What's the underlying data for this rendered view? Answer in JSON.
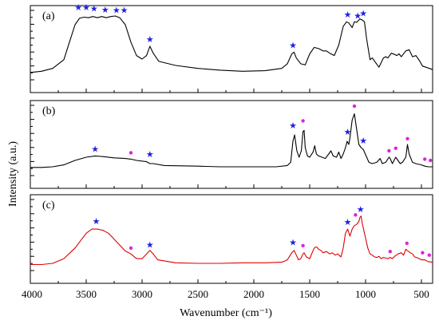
{
  "chart_data": {
    "type": "line",
    "xlabel": "Wavenumber (cm⁻¹)",
    "ylabel": "Intensity (a.u.)",
    "xlim": [
      4000,
      400
    ],
    "x_reversed": true,
    "x_ticks": [
      4000,
      3500,
      3000,
      2500,
      2000,
      1500,
      1000,
      500
    ],
    "grid": false,
    "marker_colors": {
      "star": "#2020e0",
      "dot": "#e020e0"
    },
    "panels": [
      {
        "label": "(a)",
        "color": "#000000",
        "y_axis_ticks": false,
        "points": [
          [
            4000,
            0.03
          ],
          [
            3900,
            0.05
          ],
          [
            3800,
            0.1
          ],
          [
            3700,
            0.25
          ],
          [
            3650,
            0.55
          ],
          [
            3600,
            0.85
          ],
          [
            3560,
            0.96
          ],
          [
            3520,
            0.98
          ],
          [
            3480,
            0.97
          ],
          [
            3440,
            0.99
          ],
          [
            3400,
            0.97
          ],
          [
            3360,
            0.99
          ],
          [
            3320,
            0.97
          ],
          [
            3280,
            0.99
          ],
          [
            3240,
            1.0
          ],
          [
            3200,
            0.97
          ],
          [
            3150,
            0.85
          ],
          [
            3100,
            0.55
          ],
          [
            3050,
            0.32
          ],
          [
            3000,
            0.26
          ],
          [
            2960,
            0.32
          ],
          [
            2930,
            0.48
          ],
          [
            2900,
            0.36
          ],
          [
            2850,
            0.22
          ],
          [
            2700,
            0.15
          ],
          [
            2500,
            0.1
          ],
          [
            2300,
            0.07
          ],
          [
            2100,
            0.05
          ],
          [
            1900,
            0.06
          ],
          [
            1750,
            0.1
          ],
          [
            1700,
            0.18
          ],
          [
            1660,
            0.35
          ],
          [
            1640,
            0.38
          ],
          [
            1620,
            0.28
          ],
          [
            1580,
            0.18
          ],
          [
            1540,
            0.16
          ],
          [
            1500,
            0.35
          ],
          [
            1460,
            0.46
          ],
          [
            1420,
            0.44
          ],
          [
            1380,
            0.4
          ],
          [
            1350,
            0.4
          ],
          [
            1320,
            0.36
          ],
          [
            1280,
            0.32
          ],
          [
            1240,
            0.5
          ],
          [
            1200,
            0.82
          ],
          [
            1170,
            0.9
          ],
          [
            1150,
            0.88
          ],
          [
            1120,
            0.8
          ],
          [
            1100,
            0.9
          ],
          [
            1080,
            0.89
          ],
          [
            1050,
            0.95
          ],
          [
            1030,
            0.93
          ],
          [
            1010,
            0.9
          ],
          [
            990,
            0.6
          ],
          [
            960,
            0.25
          ],
          [
            940,
            0.28
          ],
          [
            910,
            0.2
          ],
          [
            880,
            0.12
          ],
          [
            860,
            0.2
          ],
          [
            840,
            0.28
          ],
          [
            820,
            0.3
          ],
          [
            800,
            0.28
          ],
          [
            770,
            0.36
          ],
          [
            740,
            0.34
          ],
          [
            720,
            0.32
          ],
          [
            700,
            0.35
          ],
          [
            680,
            0.3
          ],
          [
            640,
            0.4
          ],
          [
            610,
            0.42
          ],
          [
            580,
            0.3
          ],
          [
            550,
            0.32
          ],
          [
            520,
            0.24
          ],
          [
            490,
            0.14
          ],
          [
            460,
            0.12
          ],
          [
            430,
            0.1
          ],
          [
            400,
            0.08
          ]
        ],
        "markers": [
          {
            "type": "star",
            "x": 3570,
            "y": 1.15
          },
          {
            "type": "star",
            "x": 3500,
            "y": 1.15
          },
          {
            "type": "star",
            "x": 3430,
            "y": 1.13
          },
          {
            "type": "star",
            "x": 3330,
            "y": 1.11
          },
          {
            "type": "star",
            "x": 3230,
            "y": 1.1
          },
          {
            "type": "star",
            "x": 3160,
            "y": 1.1
          },
          {
            "type": "star",
            "x": 2930,
            "y": 0.6
          },
          {
            "type": "star",
            "x": 1650,
            "y": 0.5
          },
          {
            "type": "star",
            "x": 1160,
            "y": 1.03
          },
          {
            "type": "star",
            "x": 1070,
            "y": 1.01
          },
          {
            "type": "star",
            "x": 1020,
            "y": 1.05
          }
        ]
      },
      {
        "label": "(b)",
        "color": "#000000",
        "y_axis_ticks": true,
        "points": [
          [
            4000,
            0.04
          ],
          [
            3900,
            0.04
          ],
          [
            3800,
            0.05
          ],
          [
            3700,
            0.08
          ],
          [
            3600,
            0.15
          ],
          [
            3500,
            0.2
          ],
          [
            3420,
            0.22
          ],
          [
            3350,
            0.21
          ],
          [
            3250,
            0.19
          ],
          [
            3150,
            0.18
          ],
          [
            3100,
            0.17
          ],
          [
            3050,
            0.15
          ],
          [
            2960,
            0.13
          ],
          [
            2930,
            0.1
          ],
          [
            2900,
            0.1
          ],
          [
            2800,
            0.07
          ],
          [
            2500,
            0.06
          ],
          [
            2300,
            0.05
          ],
          [
            2000,
            0.05
          ],
          [
            1800,
            0.05
          ],
          [
            1700,
            0.07
          ],
          [
            1670,
            0.12
          ],
          [
            1650,
            0.45
          ],
          [
            1635,
            0.55
          ],
          [
            1615,
            0.3
          ],
          [
            1595,
            0.2
          ],
          [
            1575,
            0.3
          ],
          [
            1560,
            0.6
          ],
          [
            1550,
            0.62
          ],
          [
            1540,
            0.35
          ],
          [
            1520,
            0.22
          ],
          [
            1500,
            0.2
          ],
          [
            1470,
            0.28
          ],
          [
            1455,
            0.38
          ],
          [
            1440,
            0.25
          ],
          [
            1420,
            0.22
          ],
          [
            1390,
            0.2
          ],
          [
            1360,
            0.18
          ],
          [
            1330,
            0.25
          ],
          [
            1310,
            0.3
          ],
          [
            1290,
            0.22
          ],
          [
            1260,
            0.2
          ],
          [
            1240,
            0.28
          ],
          [
            1220,
            0.18
          ],
          [
            1200,
            0.25
          ],
          [
            1180,
            0.35
          ],
          [
            1165,
            0.45
          ],
          [
            1150,
            0.4
          ],
          [
            1140,
            0.5
          ],
          [
            1120,
            0.78
          ],
          [
            1100,
            0.88
          ],
          [
            1085,
            0.7
          ],
          [
            1060,
            0.4
          ],
          [
            1040,
            0.35
          ],
          [
            1020,
            0.32
          ],
          [
            990,
            0.2
          ],
          [
            970,
            0.12
          ],
          [
            940,
            0.1
          ],
          [
            900,
            0.12
          ],
          [
            870,
            0.18
          ],
          [
            850,
            0.1
          ],
          [
            820,
            0.12
          ],
          [
            790,
            0.2
          ],
          [
            780,
            0.18
          ],
          [
            760,
            0.1
          ],
          [
            730,
            0.2
          ],
          [
            710,
            0.15
          ],
          [
            690,
            0.1
          ],
          [
            670,
            0.12
          ],
          [
            640,
            0.2
          ],
          [
            625,
            0.4
          ],
          [
            610,
            0.25
          ],
          [
            580,
            0.12
          ],
          [
            550,
            0.1
          ],
          [
            500,
            0.08
          ],
          [
            470,
            0.06
          ],
          [
            440,
            0.05
          ],
          [
            400,
            0.05
          ]
        ],
        "markers": [
          {
            "type": "star",
            "x": 3420,
            "y": 0.33
          },
          {
            "type": "dot",
            "x": 3100,
            "y": 0.27
          },
          {
            "type": "star",
            "x": 2930,
            "y": 0.25
          },
          {
            "type": "star",
            "x": 1650,
            "y": 0.7
          },
          {
            "type": "dot",
            "x": 1560,
            "y": 0.77
          },
          {
            "type": "star",
            "x": 1160,
            "y": 0.6
          },
          {
            "type": "dot",
            "x": 1100,
            "y": 1.0
          },
          {
            "type": "star",
            "x": 1020,
            "y": 0.46
          },
          {
            "type": "dot",
            "x": 790,
            "y": 0.3
          },
          {
            "type": "dot",
            "x": 730,
            "y": 0.34
          },
          {
            "type": "dot",
            "x": 625,
            "y": 0.49
          },
          {
            "type": "dot",
            "x": 470,
            "y": 0.17
          },
          {
            "type": "dot",
            "x": 420,
            "y": 0.15
          }
        ]
      },
      {
        "label": "(c)",
        "color": "#dd0000",
        "y_axis_ticks": true,
        "points": [
          [
            4000,
            0.02
          ],
          [
            3900,
            0.02
          ],
          [
            3800,
            0.04
          ],
          [
            3700,
            0.12
          ],
          [
            3600,
            0.3
          ],
          [
            3500,
            0.55
          ],
          [
            3450,
            0.62
          ],
          [
            3400,
            0.62
          ],
          [
            3350,
            0.6
          ],
          [
            3300,
            0.55
          ],
          [
            3250,
            0.45
          ],
          [
            3200,
            0.35
          ],
          [
            3150,
            0.25
          ],
          [
            3100,
            0.2
          ],
          [
            3050,
            0.12
          ],
          [
            3000,
            0.12
          ],
          [
            2960,
            0.2
          ],
          [
            2930,
            0.26
          ],
          [
            2900,
            0.2
          ],
          [
            2860,
            0.1
          ],
          [
            2700,
            0.05
          ],
          [
            2500,
            0.04
          ],
          [
            2300,
            0.04
          ],
          [
            2100,
            0.05
          ],
          [
            1900,
            0.05
          ],
          [
            1750,
            0.06
          ],
          [
            1700,
            0.1
          ],
          [
            1660,
            0.22
          ],
          [
            1640,
            0.26
          ],
          [
            1620,
            0.18
          ],
          [
            1600,
            0.1
          ],
          [
            1580,
            0.12
          ],
          [
            1560,
            0.2
          ],
          [
            1550,
            0.22
          ],
          [
            1530,
            0.15
          ],
          [
            1500,
            0.12
          ],
          [
            1460,
            0.3
          ],
          [
            1440,
            0.32
          ],
          [
            1420,
            0.28
          ],
          [
            1400,
            0.26
          ],
          [
            1380,
            0.22
          ],
          [
            1350,
            0.24
          ],
          [
            1320,
            0.2
          ],
          [
            1300,
            0.22
          ],
          [
            1270,
            0.18
          ],
          [
            1250,
            0.2
          ],
          [
            1220,
            0.15
          ],
          [
            1200,
            0.3
          ],
          [
            1180,
            0.55
          ],
          [
            1160,
            0.62
          ],
          [
            1140,
            0.5
          ],
          [
            1120,
            0.62
          ],
          [
            1100,
            0.68
          ],
          [
            1080,
            0.7
          ],
          [
            1060,
            0.75
          ],
          [
            1050,
            0.82
          ],
          [
            1040,
            0.84
          ],
          [
            1030,
            0.72
          ],
          [
            1010,
            0.55
          ],
          [
            980,
            0.3
          ],
          [
            960,
            0.2
          ],
          [
            940,
            0.18
          ],
          [
            920,
            0.15
          ],
          [
            900,
            0.14
          ],
          [
            880,
            0.16
          ],
          [
            860,
            0.12
          ],
          [
            840,
            0.14
          ],
          [
            800,
            0.12
          ],
          [
            780,
            0.14
          ],
          [
            760,
            0.12
          ],
          [
            740,
            0.16
          ],
          [
            710,
            0.2
          ],
          [
            680,
            0.22
          ],
          [
            660,
            0.18
          ],
          [
            640,
            0.28
          ],
          [
            620,
            0.25
          ],
          [
            600,
            0.22
          ],
          [
            580,
            0.2
          ],
          [
            560,
            0.15
          ],
          [
            530,
            0.13
          ],
          [
            500,
            0.1
          ],
          [
            470,
            0.1
          ],
          [
            440,
            0.07
          ],
          [
            400,
            0.06
          ]
        ],
        "markers": [
          {
            "type": "star",
            "x": 3410,
            "y": 0.76
          },
          {
            "type": "dot",
            "x": 3100,
            "y": 0.3
          },
          {
            "type": "star",
            "x": 2930,
            "y": 0.36
          },
          {
            "type": "star",
            "x": 1650,
            "y": 0.4
          },
          {
            "type": "dot",
            "x": 1560,
            "y": 0.34
          },
          {
            "type": "star",
            "x": 1160,
            "y": 0.74
          },
          {
            "type": "dot",
            "x": 1090,
            "y": 0.86
          },
          {
            "type": "star",
            "x": 1045,
            "y": 0.96
          },
          {
            "type": "dot",
            "x": 780,
            "y": 0.24
          },
          {
            "type": "dot",
            "x": 630,
            "y": 0.38
          },
          {
            "type": "dot",
            "x": 490,
            "y": 0.22
          },
          {
            "type": "dot",
            "x": 430,
            "y": 0.18
          }
        ]
      }
    ]
  }
}
